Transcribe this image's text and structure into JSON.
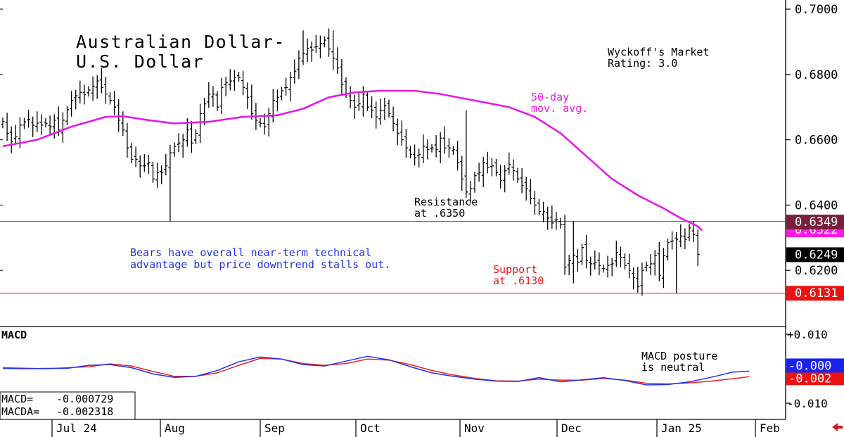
{
  "chart_data": [
    {
      "type": "ohlc",
      "title_line1": "Australian Dollar-",
      "title_line2": "U.S. Dollar",
      "rating_line1": "Wyckoff's Market",
      "rating_line2": "Rating: 3.0",
      "ylim": [
        0.61,
        0.702
      ],
      "y_ticks": [
        "0.7000",
        "0.6800",
        "0.6600",
        "0.6400",
        "0.6200"
      ],
      "x_labels": [
        "Jul 24",
        "Aug",
        "Sep",
        "Oct",
        "Nov",
        "Dec",
        "Jan 25",
        "Feb"
      ],
      "ma_label_line1": "50-day",
      "ma_label_line2": "mov. avg.",
      "resistance": {
        "value": 0.635,
        "label_line1": "Resistance",
        "label_line2": "at .6350"
      },
      "support": {
        "value": 0.613,
        "label_line1": "Support",
        "label_line2": "at .6130"
      },
      "commentary_line1": "Bears have overall near-term technical",
      "commentary_line2": "advantage but price downtrend stalls out.",
      "price_tags": [
        {
          "text": "0.6349",
          "value": 0.6349,
          "bg": "#7a1f3d",
          "fg": "#ffffff"
        },
        {
          "text": "0.6322",
          "value": 0.6322,
          "bg": "#ff19e6",
          "fg": "#ffffff"
        },
        {
          "text": "0.6249",
          "value": 0.6249,
          "bg": "#000000",
          "fg": "#ffffff"
        },
        {
          "text": "0.6131",
          "value": 0.6131,
          "bg": "#ee1111",
          "fg": "#ffffff"
        }
      ],
      "bars_close": [
        0.6656,
        0.662,
        0.6595,
        0.661,
        0.6645,
        0.6655,
        0.6662,
        0.6644,
        0.6651,
        0.6645,
        0.665,
        0.664,
        0.666,
        0.663,
        0.666,
        0.6692,
        0.672,
        0.6735,
        0.6745,
        0.6738,
        0.6752,
        0.6764,
        0.678,
        0.676,
        0.674,
        0.672,
        0.67,
        0.666,
        0.663,
        0.6575,
        0.654,
        0.654,
        0.652,
        0.652,
        0.653,
        0.648,
        0.65,
        0.65,
        0.652,
        0.656,
        0.658,
        0.659,
        0.66,
        0.663,
        0.659,
        0.662,
        0.668,
        0.671,
        0.674,
        0.674,
        0.67,
        0.676,
        0.6775,
        0.678,
        0.679,
        0.679,
        0.676,
        0.673,
        0.668,
        0.666,
        0.665,
        0.664,
        0.668,
        0.672,
        0.673,
        0.675,
        0.676,
        0.679,
        0.681,
        0.685,
        0.6865,
        0.688,
        0.6875,
        0.6885,
        0.6895,
        0.6905,
        0.6878,
        0.685,
        0.682,
        0.677,
        0.674,
        0.672,
        0.67,
        0.671,
        0.674,
        0.67,
        0.669,
        0.667,
        0.669,
        0.6705,
        0.668,
        0.665,
        0.662,
        0.66,
        0.6575,
        0.6555,
        0.6545,
        0.6555,
        0.658,
        0.657,
        0.6575,
        0.657,
        0.6605,
        0.6575,
        0.6575,
        0.657,
        0.653,
        0.648,
        0.644,
        0.645,
        0.649,
        0.65,
        0.653,
        0.6515,
        0.652,
        0.65,
        0.6475,
        0.6505,
        0.6525,
        0.6505,
        0.648,
        0.646,
        0.645,
        0.642,
        0.64,
        0.638,
        0.638,
        0.636,
        0.6345,
        0.6355,
        0.634,
        0.621,
        0.623,
        0.6245,
        0.6225,
        0.627,
        0.623,
        0.622,
        0.6225,
        0.6215,
        0.6205,
        0.6215,
        0.622,
        0.6255,
        0.624,
        0.6215,
        0.62,
        0.6178,
        0.615,
        0.62,
        0.6215,
        0.622,
        0.6245,
        0.6185,
        0.6245,
        0.6285,
        0.629,
        0.6295,
        0.6305,
        0.6295,
        0.633,
        0.631,
        0.6249
      ],
      "ma50": [
        [
          0,
          0.658
        ],
        [
          8,
          0.66
        ],
        [
          16,
          0.664
        ],
        [
          24,
          0.667
        ],
        [
          28,
          0.6672
        ],
        [
          34,
          0.666
        ],
        [
          40,
          0.665
        ],
        [
          48,
          0.6655
        ],
        [
          56,
          0.667
        ],
        [
          64,
          0.6675
        ],
        [
          70,
          0.6695
        ],
        [
          76,
          0.673
        ],
        [
          82,
          0.6745
        ],
        [
          88,
          0.675
        ],
        [
          96,
          0.675
        ],
        [
          102,
          0.674
        ],
        [
          110,
          0.672
        ],
        [
          118,
          0.67
        ],
        [
          124,
          0.667
        ],
        [
          130,
          0.662
        ],
        [
          136,
          0.655
        ],
        [
          142,
          0.648
        ],
        [
          148,
          0.643
        ],
        [
          154,
          0.639
        ],
        [
          158,
          0.636
        ],
        [
          162,
          0.6335
        ],
        [
          163,
          0.6322
        ]
      ],
      "macd": {
        "label": "MACD",
        "macd_label": "MACD=",
        "macd_value": "-0.000729",
        "macda_label": "MACDA=",
        "macda_value": "-0.002318",
        "ylim": [
          -0.012,
          0.012
        ],
        "y_ticks": [
          "+0.010",
          "0.000",
          "-0.010"
        ],
        "tags": [
          {
            "text": "-0.000",
            "value": -0.0007,
            "bg": "#1a22ee",
            "fg": "#ffffff"
          },
          {
            "text": "-0.002",
            "value": -0.0023,
            "bg": "#ee1111",
            "fg": "#ffffff"
          }
        ],
        "note_line1": "MACD posture",
        "note_line2": "is neutral",
        "macd_line": [
          [
            0,
            0.0001
          ],
          [
            5,
            0.0
          ],
          [
            10,
            0.0001
          ],
          [
            15,
            0.0001
          ],
          [
            20,
            0.001
          ],
          [
            25,
            0.0012
          ],
          [
            30,
            0.0003
          ],
          [
            35,
            -0.0015
          ],
          [
            40,
            -0.0025
          ],
          [
            45,
            -0.0022
          ],
          [
            50,
            -0.0005
          ],
          [
            55,
            0.002
          ],
          [
            60,
            0.0034
          ],
          [
            65,
            0.0028
          ],
          [
            70,
            0.0012
          ],
          [
            75,
            0.0008
          ],
          [
            80,
            0.0022
          ],
          [
            85,
            0.0036
          ],
          [
            90,
            0.0026
          ],
          [
            95,
            0.0006
          ],
          [
            100,
            -0.0012
          ],
          [
            105,
            -0.0022
          ],
          [
            110,
            -0.003
          ],
          [
            115,
            -0.0036
          ],
          [
            120,
            -0.0037
          ],
          [
            125,
            -0.0026
          ],
          [
            130,
            -0.0038
          ],
          [
            135,
            -0.0032
          ],
          [
            140,
            -0.0026
          ],
          [
            145,
            -0.0034
          ],
          [
            150,
            -0.0047
          ],
          [
            155,
            -0.0046
          ],
          [
            160,
            -0.0038
          ],
          [
            165,
            -0.0025
          ],
          [
            170,
            -0.001
          ],
          [
            174,
            -0.0007
          ]
        ],
        "signal_line": [
          [
            0,
            0.0003
          ],
          [
            10,
            0.0
          ],
          [
            20,
            0.0006
          ],
          [
            25,
            0.0014
          ],
          [
            30,
            0.0008
          ],
          [
            35,
            -0.0008
          ],
          [
            40,
            -0.0022
          ],
          [
            45,
            -0.0022
          ],
          [
            50,
            -0.0012
          ],
          [
            55,
            0.001
          ],
          [
            60,
            0.003
          ],
          [
            65,
            0.0028
          ],
          [
            70,
            0.0015
          ],
          [
            75,
            0.001
          ],
          [
            80,
            0.0015
          ],
          [
            85,
            0.0028
          ],
          [
            90,
            0.0025
          ],
          [
            95,
            0.0012
          ],
          [
            100,
            -0.0005
          ],
          [
            105,
            -0.0018
          ],
          [
            110,
            -0.0028
          ],
          [
            115,
            -0.0035
          ],
          [
            120,
            -0.0036
          ],
          [
            125,
            -0.003
          ],
          [
            130,
            -0.0033
          ],
          [
            135,
            -0.0033
          ],
          [
            140,
            -0.0028
          ],
          [
            145,
            -0.0033
          ],
          [
            150,
            -0.0042
          ],
          [
            155,
            -0.0044
          ],
          [
            160,
            -0.0041
          ],
          [
            165,
            -0.0036
          ],
          [
            170,
            -0.0029
          ],
          [
            174,
            -0.0023
          ]
        ]
      }
    }
  ],
  "colors": {
    "bars": "#000000",
    "ma50": "#e61ae6",
    "resistance_line": "#c81e3c",
    "support_line": "#e01414",
    "commentary": "#2233dd",
    "support_text": "#e01414",
    "ma_label": "#e61ae6",
    "macd_line": "#2233ee",
    "signal_line": "#ee2222",
    "axis": "#000000"
  }
}
